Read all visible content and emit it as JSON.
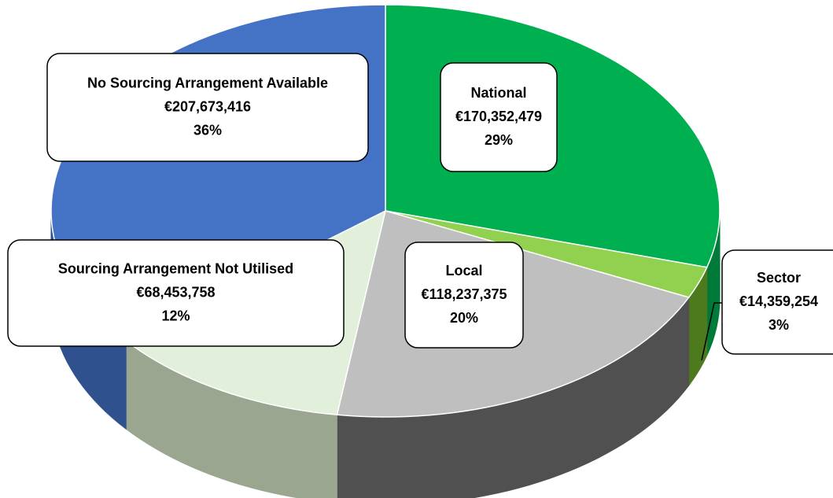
{
  "chart_data": {
    "type": "pie",
    "categories": [
      "National",
      "Sector",
      "Local",
      "Sourcing Arrangement Not Utilised",
      "No Sourcing Arrangement Available"
    ],
    "values": [
      170352479,
      14359254,
      118237375,
      68453758,
      207673416
    ],
    "value_labels": [
      "€170,352,479",
      "€14,359,254",
      "€118,237,375",
      "€68,453,758",
      "€207,673,416"
    ],
    "shares": [
      29,
      3,
      20,
      12,
      36
    ],
    "share_labels": [
      "29%",
      "3%",
      "20%",
      "12%",
      "36%"
    ],
    "colors": [
      "#00b050",
      "#92d050",
      "#bfbfbf",
      "#e2efda",
      "#4472c4"
    ],
    "side_colors": [
      "#007a38",
      "#4e7a1e",
      "#505050",
      "#9aa68f",
      "#2f528f"
    ]
  }
}
